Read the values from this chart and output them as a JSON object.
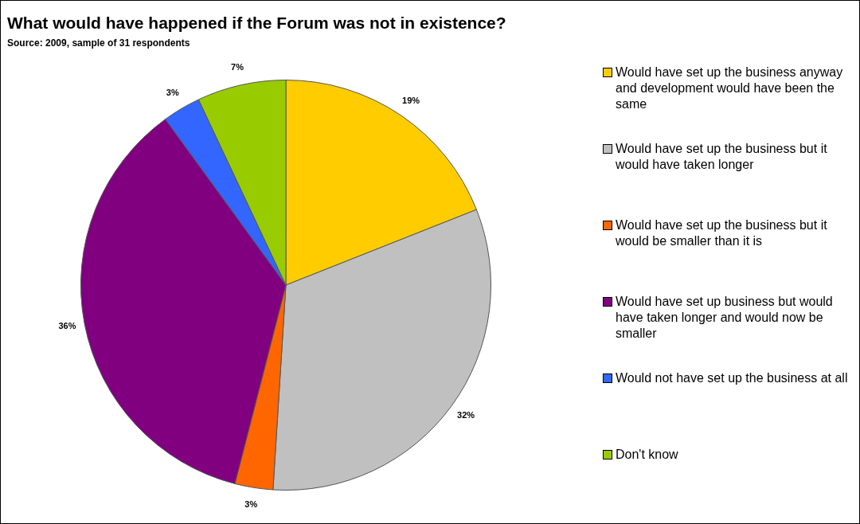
{
  "chart_data": {
    "type": "pie",
    "title": "What would have happened if the Forum was not in existence?",
    "subtitle": "Source: 2009, sample of 31 respondents",
    "categories": [
      "Would have set up the business anyway and development would have been the same",
      "Would have set up the business but it would have taken longer",
      "Would have set up the business but it would be smaller than it is",
      "Would have set up business but would have taken longer and would now be smaller",
      "Would not have set up the business at all",
      "Don't know"
    ],
    "values": [
      19,
      32,
      3,
      36,
      3,
      7
    ],
    "value_labels": [
      "19%",
      "32%",
      "3%",
      "36%",
      "3%",
      "7%"
    ],
    "colors": [
      "#ffcc00",
      "#c0c0c0",
      "#ff6600",
      "#800080",
      "#3366ff",
      "#99cc00"
    ],
    "legend": "right"
  }
}
